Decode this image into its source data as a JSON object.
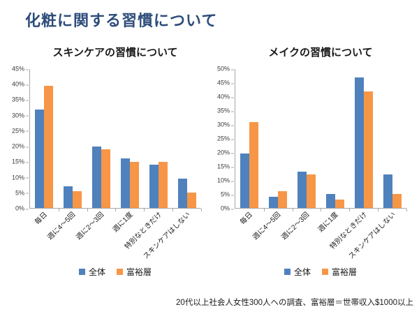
{
  "title": "化粧に関する習慣について",
  "footnote": "20代以上社会人女性300人への調査、富裕層＝世帯収入$1000以上",
  "colors": {
    "title": "#2e4d7b",
    "series_overall": "#4F81BD",
    "series_wealthy": "#F79646",
    "axis": "#a6a6a6"
  },
  "chart_data": [
    {
      "type": "bar",
      "title": "スキンケアの習慣について",
      "categories": [
        "毎日",
        "週に4～5回",
        "週に2～3回",
        "週に1度",
        "特別なときだけ",
        "スキンケアはしない"
      ],
      "series": [
        {
          "name": "全体",
          "color": "#4F81BD",
          "values": [
            32,
            7,
            20,
            16,
            14,
            9.5
          ]
        },
        {
          "name": "富裕層",
          "color": "#F79646",
          "values": [
            39.5,
            5.5,
            19,
            15,
            15,
            5
          ]
        }
      ],
      "xlabel": "",
      "ylabel": "",
      "ylim": [
        0,
        45
      ],
      "ytick": 5,
      "ytick_format": "percent",
      "grid": false,
      "legend_position": "bottom"
    },
    {
      "type": "bar",
      "title": "メイクの習慣について",
      "categories": [
        "毎日",
        "週に4～5回",
        "週に2～3回",
        "週に1度",
        "特別なときだけ",
        "スキンケアはしない"
      ],
      "series": [
        {
          "name": "全体",
          "color": "#4F81BD",
          "values": [
            19.5,
            4,
            13,
            5,
            47,
            12
          ]
        },
        {
          "name": "富裕層",
          "color": "#F79646",
          "values": [
            31,
            6,
            12,
            3,
            42,
            5
          ]
        }
      ],
      "xlabel": "",
      "ylabel": "",
      "ylim": [
        0,
        50
      ],
      "ytick": 5,
      "ytick_format": "percent",
      "grid": false,
      "legend_position": "bottom"
    }
  ]
}
